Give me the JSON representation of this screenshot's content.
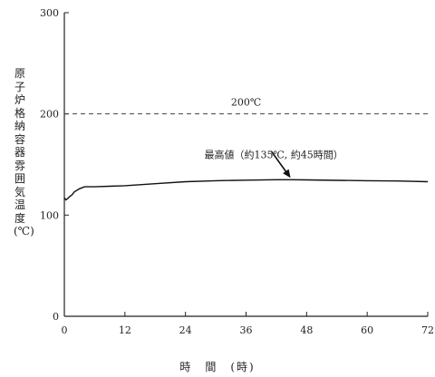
{
  "chart_data": {
    "type": "line",
    "title": "",
    "xlabel": "時　間　(時)",
    "ylabel_lines": [
      "原",
      "子",
      "炉",
      "格",
      "納",
      "容",
      "器",
      "雰",
      "囲",
      "気",
      "温",
      "度",
      "(℃)"
    ],
    "xlim": [
      0,
      72
    ],
    "ylim": [
      0,
      300
    ],
    "x_ticks": [
      0,
      12,
      24,
      36,
      48,
      60,
      72
    ],
    "y_ticks": [
      0,
      100,
      200,
      300
    ],
    "reference_line": {
      "value": 200,
      "label": "200℃",
      "style": "dashed"
    },
    "annotation": {
      "text": "最高値（約135℃, 約45時間）",
      "x": 45,
      "y": 135
    },
    "series": [
      {
        "x": [
          0,
          0.3,
          0.6,
          1,
          1.5,
          2,
          3,
          4,
          6,
          9,
          12,
          18,
          24,
          30,
          36,
          42,
          45,
          48,
          54,
          60,
          66,
          72
        ],
        "y": [
          117,
          115,
          116,
          118,
          120,
          123,
          126,
          128,
          128,
          128.5,
          129,
          131,
          133,
          134,
          134.5,
          135,
          135,
          134.8,
          134.3,
          134,
          133.7,
          133
        ]
      }
    ]
  }
}
